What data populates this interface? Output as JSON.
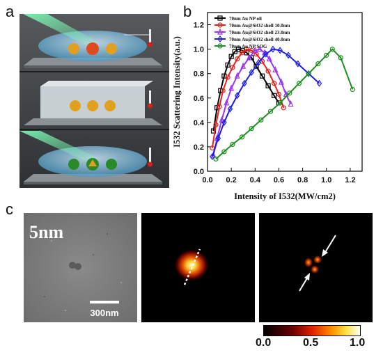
{
  "panels": {
    "a": "a",
    "b": "b",
    "c": "c"
  },
  "chart_data": {
    "type": "line",
    "xlabel": "Intensity of I532(MW/cm2)",
    "ylabel": "I532 Scattering Intensity(a.u.)",
    "xlim": [
      0,
      1.3
    ],
    "ylim": [
      0,
      1.3
    ],
    "xticks": [
      "0.0",
      "0.2",
      "0.4",
      "0.6",
      "0.8",
      "1.0",
      "1.2"
    ],
    "yticks": [
      "0.0",
      "0.2",
      "0.4",
      "0.6",
      "0.8",
      "1.0",
      "1.2"
    ],
    "legend_position": "top-right",
    "series": [
      {
        "name": "70nm Au NP oil",
        "color": "#000000",
        "marker": "square",
        "x": [
          0.05,
          0.08,
          0.11,
          0.14,
          0.17,
          0.2,
          0.23,
          0.26,
          0.29,
          0.33,
          0.37,
          0.41,
          0.46,
          0.51,
          0.56,
          0.6
        ],
        "y": [
          0.33,
          0.52,
          0.66,
          0.78,
          0.87,
          0.94,
          0.98,
          1.0,
          0.99,
          0.97,
          0.93,
          0.86,
          0.78,
          0.7,
          0.62,
          0.56
        ]
      },
      {
        "name": "70nm Au@SiO2 shell 10.0nm",
        "color": "#e8201c",
        "marker": "circle",
        "x": [
          0.04,
          0.07,
          0.1,
          0.13,
          0.17,
          0.21,
          0.25,
          0.29,
          0.33,
          0.37,
          0.41,
          0.46,
          0.51,
          0.56,
          0.6,
          0.64
        ],
        "y": [
          0.19,
          0.38,
          0.53,
          0.66,
          0.77,
          0.85,
          0.92,
          0.97,
          1.0,
          0.99,
          0.96,
          0.9,
          0.82,
          0.72,
          0.63,
          0.52
        ]
      },
      {
        "name": "70nm Au@SiO2 shell 23.0nm",
        "color": "#9b35f0",
        "marker": "triangle",
        "x": [
          0.05,
          0.08,
          0.12,
          0.16,
          0.2,
          0.25,
          0.3,
          0.35,
          0.4,
          0.44,
          0.48,
          0.52,
          0.57,
          0.62,
          0.66,
          0.7
        ],
        "y": [
          0.13,
          0.27,
          0.42,
          0.56,
          0.68,
          0.78,
          0.86,
          0.93,
          0.99,
          1.0,
          0.97,
          0.92,
          0.83,
          0.73,
          0.63,
          0.55
        ]
      },
      {
        "name": "70nm Au@SiO2 shell 40.0nm",
        "color": "#1d1de8",
        "marker": "diamond",
        "x": [
          0.04,
          0.09,
          0.14,
          0.19,
          0.25,
          0.31,
          0.37,
          0.43,
          0.49,
          0.55,
          0.61,
          0.68,
          0.76,
          0.85,
          0.94
        ],
        "y": [
          0.12,
          0.27,
          0.4,
          0.51,
          0.62,
          0.72,
          0.81,
          0.89,
          0.96,
          1.0,
          0.99,
          0.95,
          0.88,
          0.8,
          0.72
        ]
      },
      {
        "name": "70nm Au NP SOG",
        "color": "#1d8f1d",
        "marker": "circle",
        "x": [
          0.07,
          0.14,
          0.21,
          0.29,
          0.37,
          0.45,
          0.53,
          0.61,
          0.69,
          0.77,
          0.85,
          0.93,
          1.0,
          1.05,
          1.12,
          1.22
        ],
        "y": [
          0.1,
          0.16,
          0.22,
          0.28,
          0.35,
          0.42,
          0.49,
          0.56,
          0.64,
          0.72,
          0.8,
          0.88,
          0.95,
          1.0,
          0.93,
          0.67
        ]
      }
    ]
  },
  "panel_c": {
    "scale_text": "5nm",
    "scalebar_label": "300nm"
  },
  "colorbar": {
    "ticks": [
      "0.0",
      "0.5",
      "1.0"
    ]
  }
}
